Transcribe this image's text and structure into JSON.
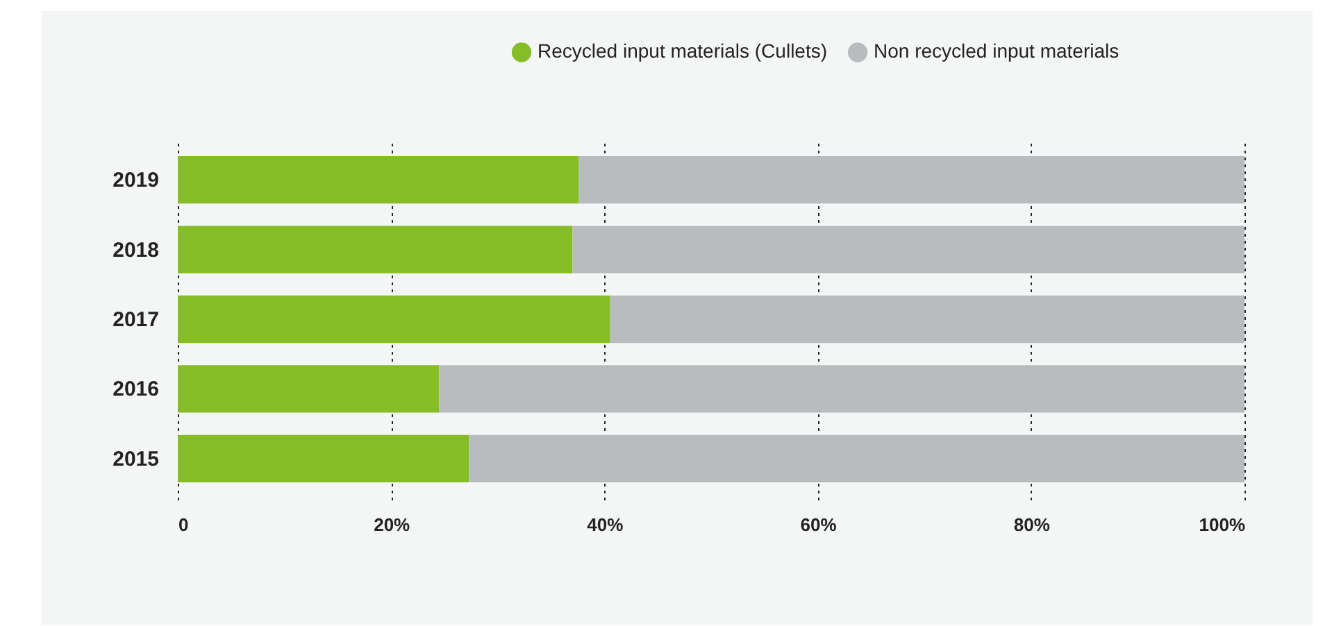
{
  "chart_data": {
    "type": "bar",
    "orientation": "horizontal",
    "stacked": true,
    "categories": [
      "2019",
      "2018",
      "2017",
      "2016",
      "2015"
    ],
    "series": [
      {
        "name": "Recycled input materials (Cullets)",
        "color": "#84bd26",
        "values": [
          37.6,
          37.0,
          40.5,
          24.5,
          27.3
        ]
      },
      {
        "name": "Non recycled input materials",
        "color": "#b9bcbf",
        "values": [
          62.4,
          63.0,
          59.5,
          75.5,
          72.7
        ]
      }
    ],
    "xlim": [
      0,
      100
    ],
    "xticks": [
      {
        "value": 0,
        "label": "0"
      },
      {
        "value": 20,
        "label": "20%"
      },
      {
        "value": 40,
        "label": "40%"
      },
      {
        "value": 60,
        "label": "60%"
      },
      {
        "value": 80,
        "label": "80%"
      },
      {
        "value": 100,
        "label": "100%"
      }
    ],
    "grid": "x",
    "legend": "top right"
  }
}
